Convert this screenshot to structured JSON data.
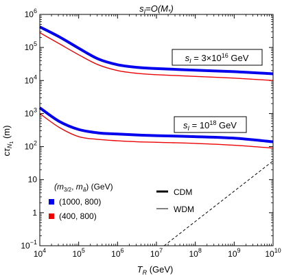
{
  "chart_data": {
    "type": "line",
    "title": "s_I = O(M_*)",
    "xlabel": "T_R (GeV)",
    "ylabel": "cτ_{N_1} (m)",
    "xscale": "log",
    "yscale": "log",
    "xlim": [
      10000,
      10000000000
    ],
    "ylim": [
      0.1,
      1000000
    ],
    "x_ticks": [
      {
        "value": 10000,
        "mant": "10",
        "exp": "4"
      },
      {
        "value": 100000,
        "mant": "10",
        "exp": "5"
      },
      {
        "value": 1000000,
        "mant": "10",
        "exp": "6"
      },
      {
        "value": 10000000,
        "mant": "10",
        "exp": "7"
      },
      {
        "value": 100000000,
        "mant": "10",
        "exp": "8"
      },
      {
        "value": 1000000000,
        "mant": "10",
        "exp": "9"
      },
      {
        "value": 10000000000,
        "mant": "10",
        "exp": "10"
      }
    ],
    "y_ticks": [
      {
        "value": 0.1,
        "mant": "10",
        "exp": "−1"
      },
      {
        "value": 1,
        "mant": "1",
        "exp": ""
      },
      {
        "value": 10,
        "mant": "10",
        "exp": ""
      },
      {
        "value": 100,
        "mant": "10",
        "exp": "2"
      },
      {
        "value": 1000,
        "mant": "10",
        "exp": "3"
      },
      {
        "value": 10000,
        "mant": "10",
        "exp": "4"
      },
      {
        "value": 100000,
        "mant": "10",
        "exp": "5"
      },
      {
        "value": 1000000,
        "mant": "10",
        "exp": "6"
      }
    ],
    "series": [
      {
        "name": "(1000, 800)",
        "group": "s_I = 3×10^16 GeV",
        "style": "CDM",
        "color": "#0000ee",
        "x": [
          10000,
          31623,
          100000,
          316228,
          1000000,
          3162278,
          10000000,
          100000000,
          1000000000,
          10000000000
        ],
        "y": [
          420000,
          210000,
          95000,
          45000,
          30000,
          25000,
          23000,
          20500,
          18500,
          16000
        ]
      },
      {
        "name": "(400, 800)",
        "group": "s_I = 3×10^16 GeV",
        "style": "WDM",
        "color": "#ee0000",
        "x": [
          10000,
          31623,
          100000,
          316228,
          1000000,
          3162278,
          10000000,
          100000000,
          1000000000,
          10000000000
        ],
        "y": [
          280000,
          130000,
          60000,
          30000,
          20000,
          16500,
          15000,
          13300,
          11800,
          10000
        ]
      },
      {
        "name": "(1000, 800)",
        "group": "s_I = 10^18 GeV",
        "style": "CDM",
        "color": "#0000ee",
        "x": [
          10000,
          31623,
          100000,
          316228,
          1000000,
          3162278,
          10000000,
          100000000,
          1000000000,
          10000000000
        ],
        "y": [
          1500,
          580,
          330,
          260,
          240,
          225,
          215,
          200,
          180,
          140
        ]
      },
      {
        "name": "(400, 800)",
        "group": "s_I = 10^18 GeV",
        "style": "WDM",
        "color": "#ee0000",
        "x": [
          10000,
          31623,
          100000,
          316228,
          1000000,
          3162278,
          10000000,
          100000000,
          1000000000,
          10000000000
        ],
        "y": [
          1000,
          380,
          200,
          165,
          150,
          140,
          135,
          125,
          110,
          90
        ]
      },
      {
        "name": "",
        "style": "dashed",
        "color": "#000000",
        "x": [
          15800000,
          10000000000
        ],
        "y": [
          0.1,
          37
        ]
      }
    ],
    "annotations": [
      {
        "text_parts": [
          "s",
          "I",
          " = 3×10",
          "16",
          " GeV"
        ],
        "at": {
          "x": 45000000,
          "y": 60000
        }
      },
      {
        "text_parts": [
          "s",
          "I",
          " = 10",
          "18",
          " GeV"
        ],
        "at": {
          "x": 95000000,
          "y": 440
        }
      }
    ],
    "legend": {
      "title_parts": [
        "(m",
        "3/2",
        ", m",
        "ã",
        ") (GeV)"
      ],
      "items": [
        {
          "label": "(1000, 800)",
          "color": "#0000ee"
        },
        {
          "label": "(400, 800)",
          "color": "#ee0000"
        }
      ],
      "line_items": [
        {
          "label": "CDM",
          "stroke": "thick"
        },
        {
          "label": "WDM",
          "stroke": "thin"
        }
      ]
    }
  }
}
